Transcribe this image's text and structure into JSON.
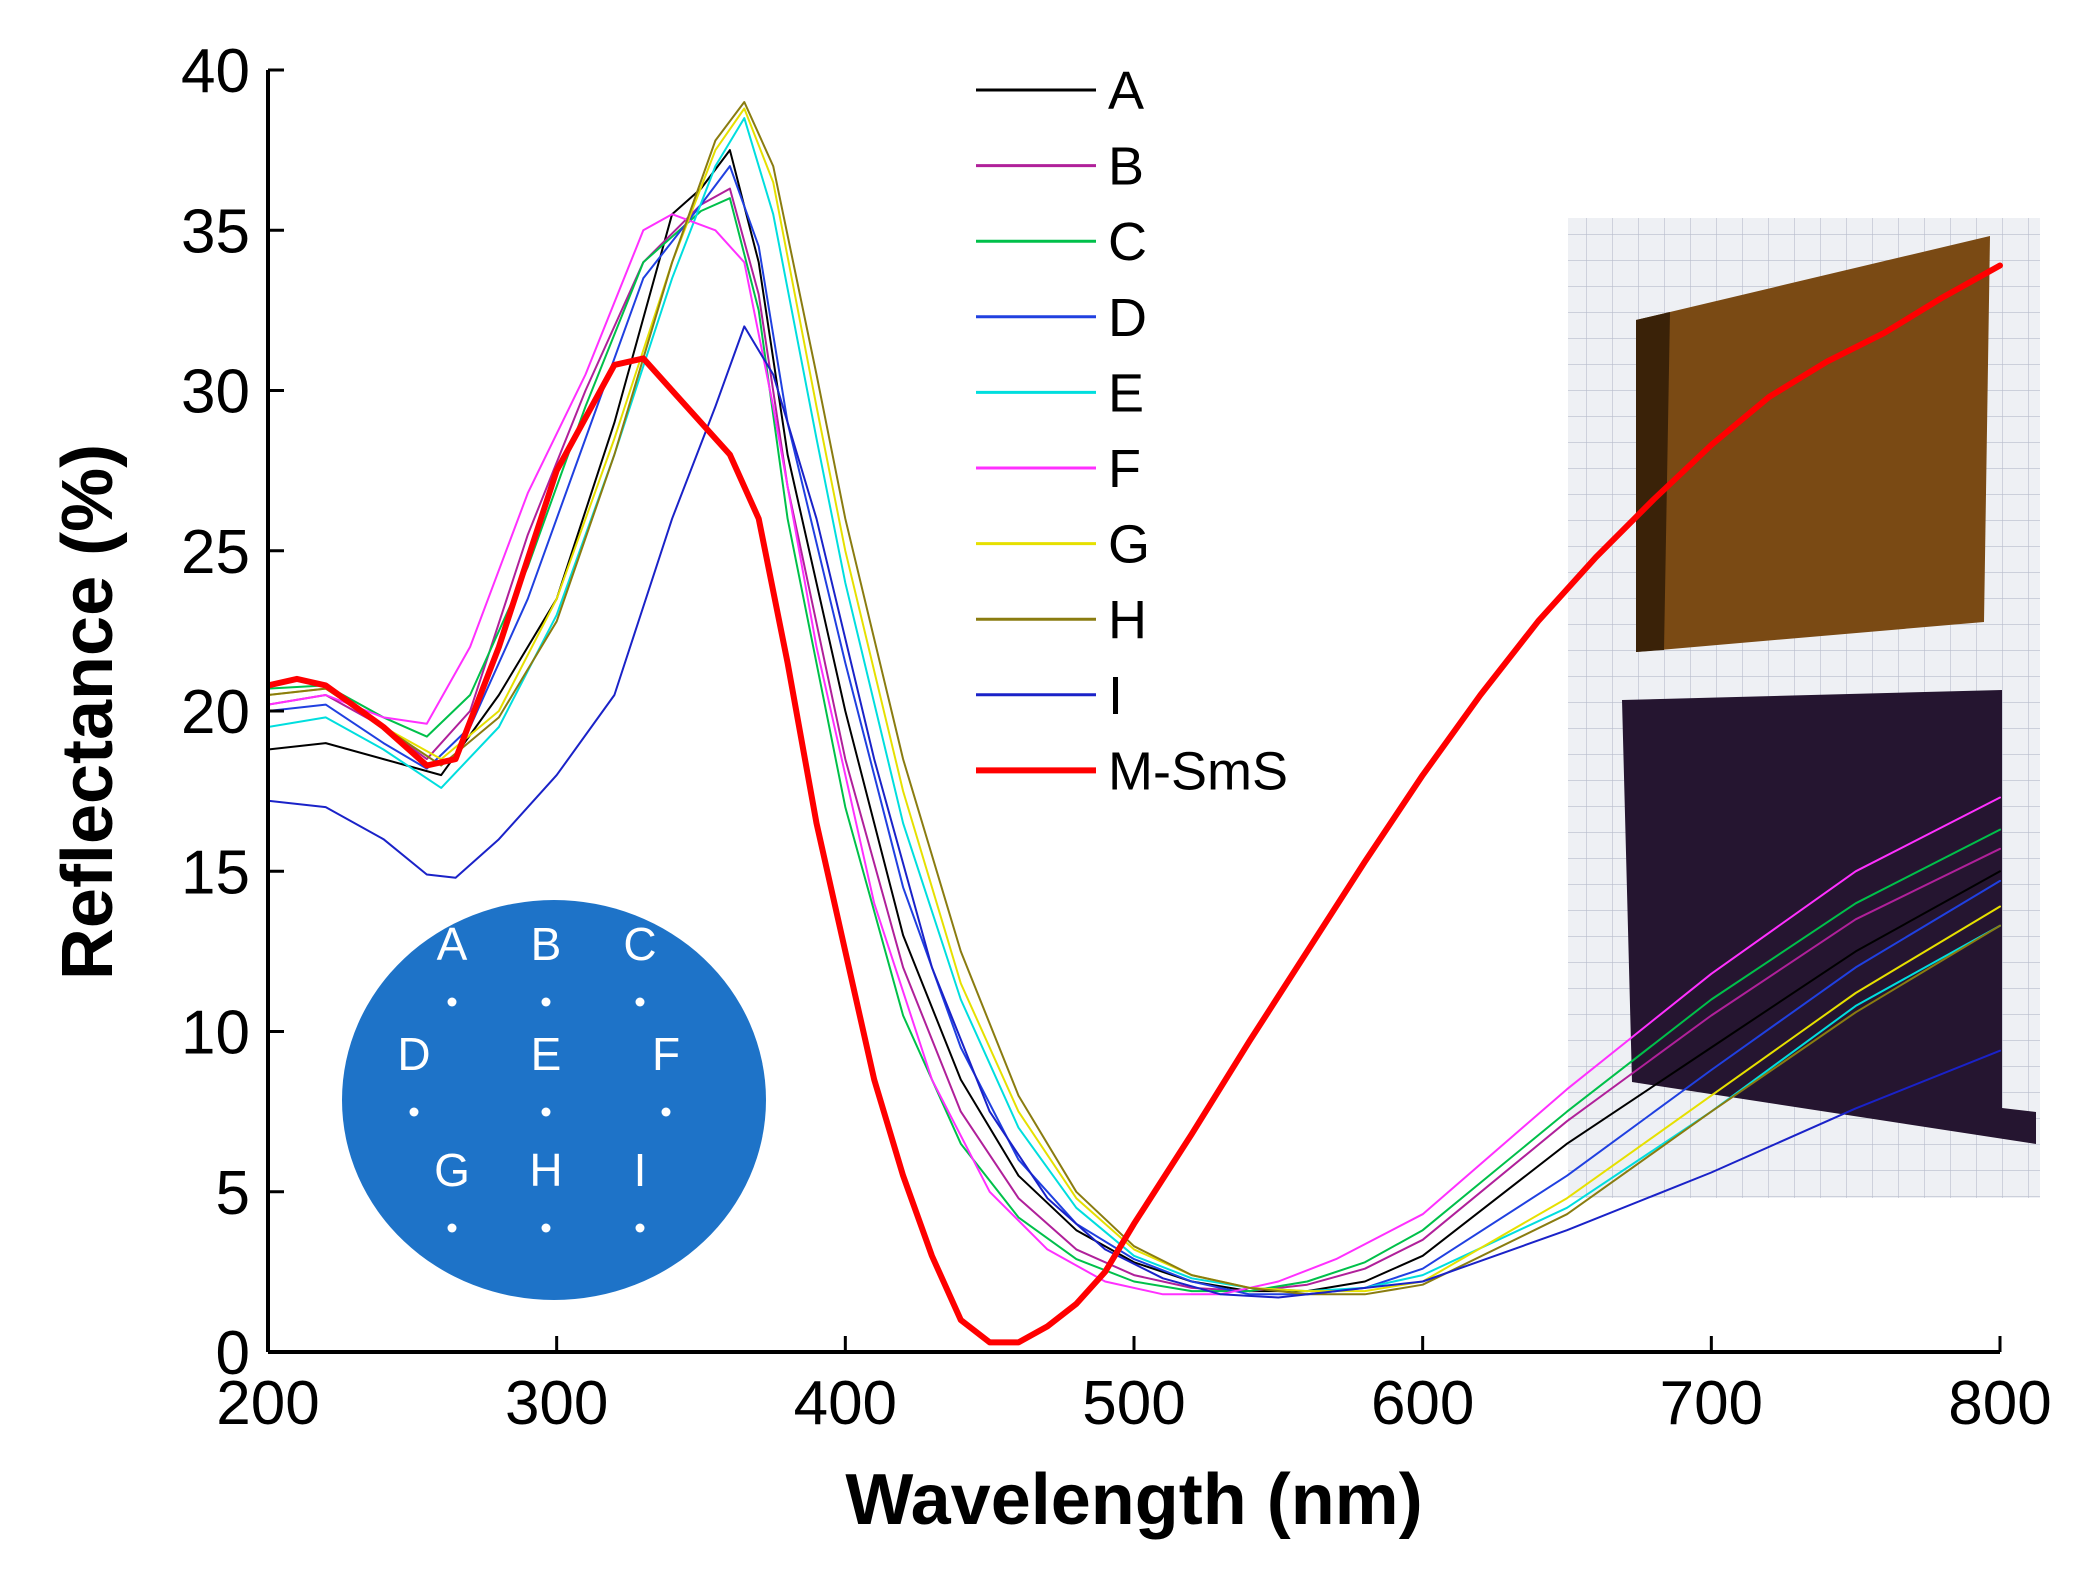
{
  "chart_data": {
    "type": "line",
    "xlabel": "Wavelength (nm)",
    "ylabel": "Reflectance (%)",
    "xlim": [
      200,
      800
    ],
    "ylim": [
      0,
      40
    ],
    "xticks": [
      200,
      300,
      400,
      500,
      600,
      700,
      800
    ],
    "yticks": [
      0,
      5,
      10,
      15,
      20,
      25,
      30,
      35,
      40
    ],
    "grid": false,
    "legend_position": "top-center",
    "series": [
      {
        "name": "A",
        "color": "#000000",
        "width": 2,
        "points": [
          [
            200,
            18.8
          ],
          [
            220,
            19.0
          ],
          [
            240,
            18.5
          ],
          [
            260,
            18.0
          ],
          [
            280,
            20.5
          ],
          [
            300,
            23.5
          ],
          [
            320,
            29.0
          ],
          [
            340,
            35.5
          ],
          [
            350,
            36.3
          ],
          [
            360,
            37.5
          ],
          [
            370,
            34.0
          ],
          [
            380,
            28.0
          ],
          [
            400,
            20.0
          ],
          [
            420,
            13.0
          ],
          [
            440,
            8.5
          ],
          [
            460,
            5.5
          ],
          [
            480,
            3.8
          ],
          [
            500,
            2.8
          ],
          [
            520,
            2.2
          ],
          [
            540,
            1.9
          ],
          [
            560,
            1.9
          ],
          [
            580,
            2.2
          ],
          [
            600,
            3.0
          ],
          [
            650,
            6.5
          ],
          [
            700,
            9.5
          ],
          [
            750,
            12.5
          ],
          [
            800,
            15.0
          ]
        ]
      },
      {
        "name": "B",
        "color": "#b0209a",
        "width": 2,
        "points": [
          [
            200,
            20.2
          ],
          [
            220,
            20.5
          ],
          [
            240,
            19.5
          ],
          [
            255,
            18.5
          ],
          [
            270,
            20.0
          ],
          [
            290,
            25.5
          ],
          [
            310,
            30.0
          ],
          [
            330,
            34.0
          ],
          [
            350,
            35.8
          ],
          [
            360,
            36.3
          ],
          [
            370,
            33.0
          ],
          [
            380,
            27.0
          ],
          [
            400,
            18.5
          ],
          [
            420,
            12.0
          ],
          [
            440,
            7.5
          ],
          [
            460,
            4.8
          ],
          [
            480,
            3.2
          ],
          [
            500,
            2.4
          ],
          [
            520,
            2.0
          ],
          [
            540,
            1.9
          ],
          [
            560,
            2.1
          ],
          [
            580,
            2.6
          ],
          [
            600,
            3.5
          ],
          [
            650,
            7.2
          ],
          [
            700,
            10.5
          ],
          [
            750,
            13.5
          ],
          [
            800,
            15.7
          ]
        ]
      },
      {
        "name": "C",
        "color": "#00c04a",
        "width": 2,
        "points": [
          [
            200,
            20.7
          ],
          [
            220,
            20.8
          ],
          [
            240,
            19.8
          ],
          [
            255,
            19.2
          ],
          [
            270,
            20.5
          ],
          [
            290,
            24.5
          ],
          [
            310,
            29.5
          ],
          [
            330,
            34.0
          ],
          [
            350,
            35.6
          ],
          [
            360,
            36.0
          ],
          [
            370,
            32.5
          ],
          [
            380,
            26.0
          ],
          [
            400,
            17.0
          ],
          [
            420,
            10.5
          ],
          [
            440,
            6.5
          ],
          [
            460,
            4.2
          ],
          [
            480,
            2.9
          ],
          [
            500,
            2.2
          ],
          [
            520,
            1.9
          ],
          [
            540,
            1.9
          ],
          [
            560,
            2.2
          ],
          [
            580,
            2.8
          ],
          [
            600,
            3.8
          ],
          [
            650,
            7.5
          ],
          [
            700,
            11.0
          ],
          [
            750,
            14.0
          ],
          [
            800,
            16.3
          ]
        ]
      },
      {
        "name": "D",
        "color": "#2040e0",
        "width": 2,
        "points": [
          [
            200,
            20.0
          ],
          [
            220,
            20.2
          ],
          [
            240,
            19.0
          ],
          [
            255,
            18.2
          ],
          [
            270,
            19.5
          ],
          [
            290,
            23.5
          ],
          [
            310,
            28.5
          ],
          [
            330,
            33.5
          ],
          [
            350,
            35.8
          ],
          [
            360,
            37.0
          ],
          [
            370,
            34.5
          ],
          [
            380,
            29.0
          ],
          [
            400,
            21.5
          ],
          [
            420,
            14.5
          ],
          [
            440,
            9.5
          ],
          [
            460,
            6.0
          ],
          [
            480,
            4.0
          ],
          [
            500,
            2.9
          ],
          [
            520,
            2.2
          ],
          [
            540,
            1.8
          ],
          [
            560,
            1.8
          ],
          [
            580,
            2.0
          ],
          [
            600,
            2.6
          ],
          [
            650,
            5.5
          ],
          [
            700,
            8.8
          ],
          [
            750,
            12.0
          ],
          [
            800,
            14.7
          ]
        ]
      },
      {
        "name": "E",
        "color": "#00dede",
        "width": 2,
        "points": [
          [
            200,
            19.5
          ],
          [
            220,
            19.8
          ],
          [
            240,
            18.8
          ],
          [
            260,
            17.6
          ],
          [
            280,
            19.5
          ],
          [
            300,
            23.0
          ],
          [
            320,
            28.0
          ],
          [
            340,
            33.5
          ],
          [
            355,
            37.0
          ],
          [
            365,
            38.5
          ],
          [
            375,
            35.5
          ],
          [
            390,
            28.5
          ],
          [
            400,
            24.0
          ],
          [
            420,
            16.5
          ],
          [
            440,
            11.0
          ],
          [
            460,
            7.0
          ],
          [
            480,
            4.5
          ],
          [
            500,
            3.0
          ],
          [
            520,
            2.3
          ],
          [
            540,
            2.0
          ],
          [
            560,
            1.9
          ],
          [
            580,
            2.0
          ],
          [
            600,
            2.4
          ],
          [
            650,
            4.5
          ],
          [
            700,
            7.5
          ],
          [
            750,
            10.8
          ],
          [
            800,
            13.3
          ]
        ]
      },
      {
        "name": "F",
        "color": "#ff30ff",
        "width": 2,
        "points": [
          [
            200,
            20.2
          ],
          [
            220,
            20.5
          ],
          [
            240,
            19.8
          ],
          [
            255,
            19.6
          ],
          [
            270,
            22.0
          ],
          [
            290,
            26.8
          ],
          [
            310,
            30.5
          ],
          [
            330,
            35.0
          ],
          [
            340,
            35.5
          ],
          [
            355,
            35.0
          ],
          [
            365,
            34.0
          ],
          [
            375,
            29.5
          ],
          [
            390,
            22.0
          ],
          [
            410,
            14.0
          ],
          [
            430,
            8.5
          ],
          [
            450,
            5.0
          ],
          [
            470,
            3.2
          ],
          [
            490,
            2.2
          ],
          [
            510,
            1.8
          ],
          [
            530,
            1.8
          ],
          [
            550,
            2.2
          ],
          [
            570,
            2.9
          ],
          [
            600,
            4.3
          ],
          [
            650,
            8.2
          ],
          [
            700,
            11.8
          ],
          [
            750,
            15.0
          ],
          [
            800,
            17.3
          ]
        ]
      },
      {
        "name": "G",
        "color": "#e6e000",
        "width": 2,
        "points": [
          [
            200,
            20.5
          ],
          [
            220,
            20.7
          ],
          [
            240,
            19.5
          ],
          [
            260,
            18.5
          ],
          [
            280,
            20.0
          ],
          [
            300,
            23.5
          ],
          [
            320,
            28.5
          ],
          [
            340,
            34.0
          ],
          [
            355,
            37.5
          ],
          [
            365,
            38.8
          ],
          [
            375,
            36.5
          ],
          [
            390,
            29.5
          ],
          [
            400,
            25.0
          ],
          [
            420,
            17.5
          ],
          [
            440,
            11.5
          ],
          [
            460,
            7.5
          ],
          [
            480,
            4.8
          ],
          [
            500,
            3.2
          ],
          [
            520,
            2.4
          ],
          [
            540,
            2.0
          ],
          [
            560,
            1.9
          ],
          [
            580,
            1.9
          ],
          [
            600,
            2.2
          ],
          [
            650,
            4.8
          ],
          [
            700,
            8.0
          ],
          [
            750,
            11.2
          ],
          [
            800,
            13.9
          ]
        ]
      },
      {
        "name": "H",
        "color": "#8a7c10",
        "width": 2,
        "points": [
          [
            200,
            20.5
          ],
          [
            220,
            20.7
          ],
          [
            240,
            19.5
          ],
          [
            260,
            18.3
          ],
          [
            280,
            19.8
          ],
          [
            300,
            22.8
          ],
          [
            320,
            28.0
          ],
          [
            340,
            34.0
          ],
          [
            355,
            37.8
          ],
          [
            365,
            39.0
          ],
          [
            375,
            37.0
          ],
          [
            390,
            30.5
          ],
          [
            400,
            26.0
          ],
          [
            420,
            18.5
          ],
          [
            440,
            12.5
          ],
          [
            460,
            8.0
          ],
          [
            480,
            5.0
          ],
          [
            500,
            3.3
          ],
          [
            520,
            2.4
          ],
          [
            540,
            2.0
          ],
          [
            560,
            1.8
          ],
          [
            580,
            1.8
          ],
          [
            600,
            2.1
          ],
          [
            650,
            4.3
          ],
          [
            700,
            7.5
          ],
          [
            750,
            10.6
          ],
          [
            800,
            13.3
          ]
        ]
      },
      {
        "name": "I",
        "color": "#1a22c8",
        "width": 2,
        "points": [
          [
            200,
            17.2
          ],
          [
            220,
            17.0
          ],
          [
            240,
            16.0
          ],
          [
            255,
            14.9
          ],
          [
            265,
            14.8
          ],
          [
            280,
            16.0
          ],
          [
            300,
            18.0
          ],
          [
            320,
            20.5
          ],
          [
            340,
            26.0
          ],
          [
            355,
            29.5
          ],
          [
            365,
            32.0
          ],
          [
            375,
            30.5
          ],
          [
            390,
            26.0
          ],
          [
            410,
            18.5
          ],
          [
            430,
            12.0
          ],
          [
            450,
            7.5
          ],
          [
            470,
            4.8
          ],
          [
            490,
            3.2
          ],
          [
            510,
            2.3
          ],
          [
            530,
            1.8
          ],
          [
            550,
            1.7
          ],
          [
            570,
            1.9
          ],
          [
            600,
            2.2
          ],
          [
            650,
            3.8
          ],
          [
            700,
            5.6
          ],
          [
            750,
            7.6
          ],
          [
            800,
            9.4
          ]
        ]
      },
      {
        "name": "M-SmS",
        "color": "#ff0000",
        "width": 6,
        "points": [
          [
            200,
            20.8
          ],
          [
            210,
            21.0
          ],
          [
            220,
            20.8
          ],
          [
            240,
            19.5
          ],
          [
            255,
            18.3
          ],
          [
            265,
            18.5
          ],
          [
            280,
            22.0
          ],
          [
            300,
            27.5
          ],
          [
            320,
            30.8
          ],
          [
            330,
            31.0
          ],
          [
            340,
            30.0
          ],
          [
            360,
            28.0
          ],
          [
            370,
            26.0
          ],
          [
            380,
            21.5
          ],
          [
            390,
            16.5
          ],
          [
            400,
            12.5
          ],
          [
            410,
            8.5
          ],
          [
            420,
            5.5
          ],
          [
            430,
            3.0
          ],
          [
            440,
            1.0
          ],
          [
            450,
            0.3
          ],
          [
            460,
            0.3
          ],
          [
            470,
            0.8
          ],
          [
            480,
            1.5
          ],
          [
            490,
            2.5
          ],
          [
            500,
            4.0
          ],
          [
            520,
            6.8
          ],
          [
            540,
            9.7
          ],
          [
            560,
            12.5
          ],
          [
            580,
            15.3
          ],
          [
            600,
            18.0
          ],
          [
            620,
            20.5
          ],
          [
            640,
            22.8
          ],
          [
            660,
            24.8
          ],
          [
            680,
            26.6
          ],
          [
            700,
            28.3
          ],
          [
            720,
            29.8
          ],
          [
            740,
            30.9
          ],
          [
            760,
            31.8
          ],
          [
            780,
            32.9
          ],
          [
            800,
            33.9
          ]
        ]
      }
    ],
    "inset": {
      "wafer_points": [
        "A",
        "B",
        "C",
        "D",
        "E",
        "F",
        "G",
        "H",
        "I"
      ],
      "wafer_color": "#1e73c8"
    }
  }
}
